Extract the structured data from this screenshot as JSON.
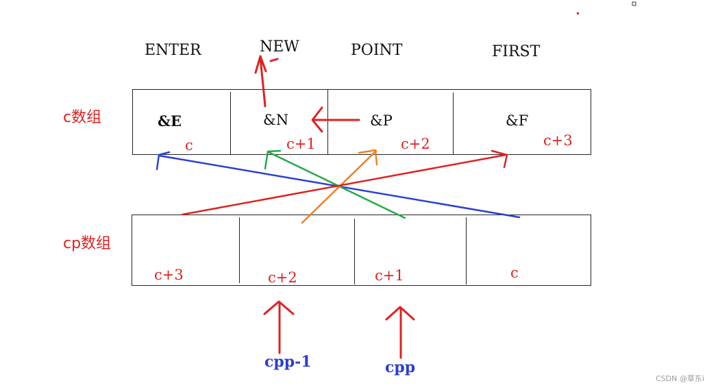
{
  "strings": {
    "w1": "ENTER",
    "w2": "NEW",
    "w3": "POINT",
    "w4": "FIRST"
  },
  "c_array": {
    "label": "c数组",
    "cells": [
      "&E",
      "&N",
      "&P",
      "&F"
    ],
    "offsets": [
      "c",
      "c+1",
      "c+2",
      "c+3"
    ]
  },
  "cp_array": {
    "label": "cp数组",
    "cells": [
      "c+3",
      "c+2",
      "c+1",
      "c"
    ]
  },
  "pointers": {
    "cpp_minus_1": "cpp-1",
    "cpp": "cpp"
  },
  "watermark": "CSDN @草东i",
  "colors": {
    "red": "#e02020",
    "blue": "#2b3fd0",
    "green": "#22aa44",
    "orange": "#f08020",
    "black": "#222222"
  }
}
